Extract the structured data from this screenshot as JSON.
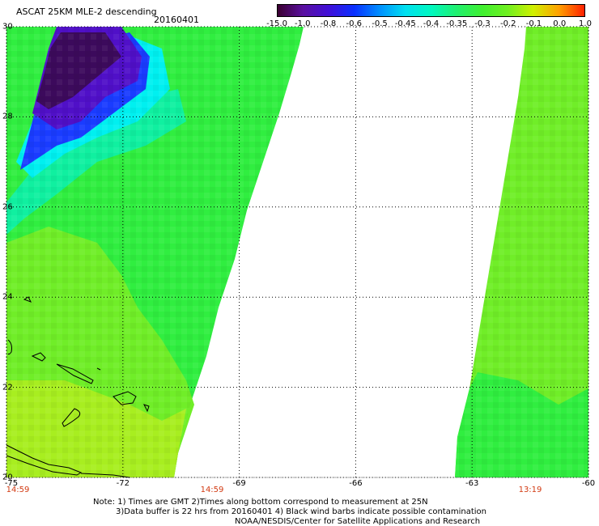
{
  "title": "ASCAT 25KM MLE-2 descending",
  "date": "20160401",
  "colorbar": {
    "labels": [
      "-15.0",
      "-1.0",
      "-0.8",
      "-0.6",
      "-0.5",
      "-0.45",
      "-0.4",
      "-0.35",
      "-0.3",
      "-0.2",
      "-0.1",
      "0.0",
      "1.0"
    ],
    "colors": [
      "#3a0030",
      "#5a10a0",
      "#4010d8",
      "#0a30ff",
      "#0090ff",
      "#00e0f0",
      "#00f8c0",
      "#20f070",
      "#40f030",
      "#70f020",
      "#d0f000",
      "#ffa000",
      "#ff2000"
    ]
  },
  "axes": {
    "y_labels": [
      "30",
      "28",
      "26",
      "24",
      "22",
      "20"
    ],
    "x_labels": [
      "-75",
      "-72",
      "-69",
      "-66",
      "-63",
      "-60"
    ]
  },
  "times": [
    "14:59",
    "14:59",
    "13:19"
  ],
  "notes": [
    "Note: 1) Times are GMT 2)Times along bottom correspond to measurement at 25N",
    "3)Data buffer is 22 hrs from 20160401 4) Black wind barbs indicate possible contamination",
    "NOAA/NESDIS/Center for Satellite Applications and Research"
  ],
  "swath_colors": {
    "purple_dark": "#3c0a5c",
    "purple": "#5010c8",
    "blue": "#1a3cff",
    "cyan": "#00f0f0",
    "aqua": "#10f0a0",
    "green": "#30ee40",
    "green_light": "#70ee28",
    "yellow_green": "#a8ee20"
  }
}
